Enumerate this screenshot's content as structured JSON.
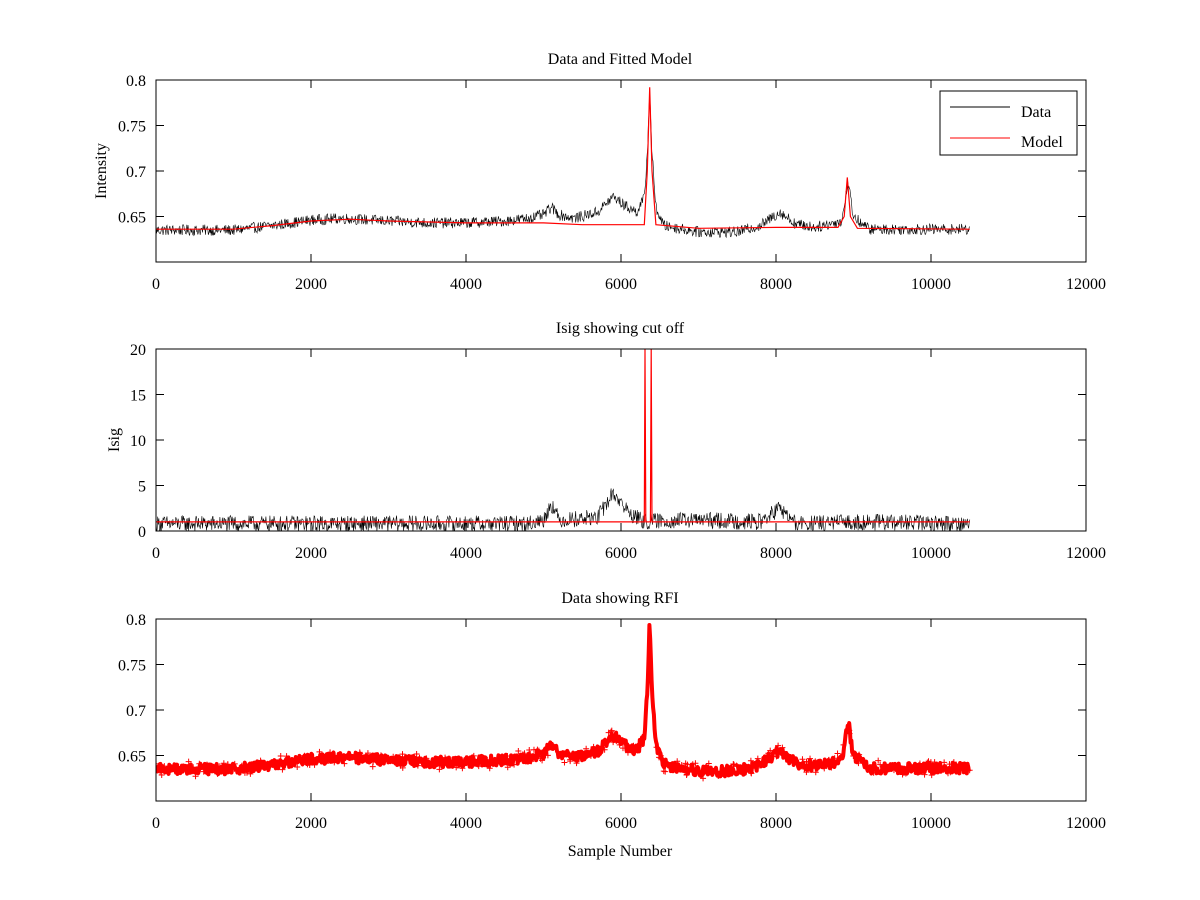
{
  "colors": {
    "data": "#000000",
    "model": "#ff0000",
    "rfi": "#ff0000",
    "axes": "#000000",
    "background": "#ffffff"
  },
  "chart_data": [
    {
      "id": "panel1",
      "type": "line",
      "title": "Data and Fitted Model",
      "xlabel": "",
      "ylabel": "Intensity",
      "xlim": [
        0,
        12000
      ],
      "ylim": [
        0.6,
        0.8
      ],
      "xticks": [
        0,
        2000,
        4000,
        6000,
        8000,
        10000,
        12000
      ],
      "xtick_labels": [
        "0",
        "2000",
        "4000",
        "6000",
        "8000",
        "10000",
        "12000"
      ],
      "yticks": [
        0.65,
        0.7,
        0.75,
        0.8
      ],
      "ytick_labels": [
        "0.65",
        "0.7",
        "0.75",
        "0.8"
      ],
      "grid": false,
      "legend": {
        "placement": "top-right",
        "entries": [
          "Data",
          "Model"
        ]
      },
      "series": [
        {
          "name": "Data",
          "style": "noisy-line",
          "color": "#000000",
          "noise": 0.006,
          "x_range": [
            0,
            10500
          ],
          "points": [
            [
              0,
              0.635
            ],
            [
              1000,
              0.635
            ],
            [
              1500,
              0.64
            ],
            [
              2000,
              0.646
            ],
            [
              2400,
              0.648
            ],
            [
              3000,
              0.645
            ],
            [
              3500,
              0.643
            ],
            [
              4000,
              0.643
            ],
            [
              4500,
              0.645
            ],
            [
              4800,
              0.648
            ],
            [
              5000,
              0.652
            ],
            [
              5100,
              0.66
            ],
            [
              5200,
              0.652
            ],
            [
              5400,
              0.648
            ],
            [
              5700,
              0.655
            ],
            [
              5900,
              0.672
            ],
            [
              6050,
              0.662
            ],
            [
              6200,
              0.655
            ],
            [
              6300,
              0.67
            ],
            [
              6340,
              0.72
            ],
            [
              6370,
              0.79
            ],
            [
              6400,
              0.72
            ],
            [
              6450,
              0.66
            ],
            [
              6550,
              0.64
            ],
            [
              7000,
              0.633
            ],
            [
              7500,
              0.633
            ],
            [
              7800,
              0.64
            ],
            [
              8050,
              0.655
            ],
            [
              8250,
              0.642
            ],
            [
              8500,
              0.638
            ],
            [
              8850,
              0.645
            ],
            [
              8930,
              0.688
            ],
            [
              9000,
              0.65
            ],
            [
              9200,
              0.636
            ],
            [
              10000,
              0.636
            ],
            [
              10500,
              0.636
            ]
          ]
        },
        {
          "name": "Model",
          "style": "line",
          "color": "#ff0000",
          "x_range": [
            0,
            10500
          ],
          "points": [
            [
              0,
              0.636
            ],
            [
              1000,
              0.636
            ],
            [
              1500,
              0.64
            ],
            [
              2000,
              0.645
            ],
            [
              2500,
              0.647
            ],
            [
              3000,
              0.645
            ],
            [
              4000,
              0.643
            ],
            [
              5000,
              0.643
            ],
            [
              5500,
              0.641
            ],
            [
              6000,
              0.641
            ],
            [
              6300,
              0.641
            ],
            [
              6340,
              0.7
            ],
            [
              6370,
              0.792
            ],
            [
              6400,
              0.7
            ],
            [
              6450,
              0.641
            ],
            [
              7000,
              0.637
            ],
            [
              8000,
              0.638
            ],
            [
              8800,
              0.638
            ],
            [
              8880,
              0.65
            ],
            [
              8920,
              0.693
            ],
            [
              8960,
              0.65
            ],
            [
              9050,
              0.637
            ],
            [
              10500,
              0.636
            ]
          ]
        }
      ]
    },
    {
      "id": "panel2",
      "type": "line",
      "title": "Isig showing cut off",
      "xlabel": "",
      "ylabel": "Isig",
      "xlim": [
        0,
        12000
      ],
      "ylim": [
        0,
        20
      ],
      "xticks": [
        0,
        2000,
        4000,
        6000,
        8000,
        10000,
        12000
      ],
      "xtick_labels": [
        "0",
        "2000",
        "4000",
        "6000",
        "8000",
        "10000",
        "12000"
      ],
      "yticks": [
        0,
        5,
        10,
        15,
        20
      ],
      "ytick_labels": [
        "0",
        "5",
        "10",
        "15",
        "20"
      ],
      "grid": false,
      "series": [
        {
          "style": "noisy-line",
          "color": "#000000",
          "noise": 0.9,
          "x_range": [
            0,
            10500
          ],
          "points": [
            [
              0,
              0.8
            ],
            [
              4800,
              0.8
            ],
            [
              5000,
              1.2
            ],
            [
              5100,
              3.0
            ],
            [
              5200,
              1.2
            ],
            [
              5700,
              1.5
            ],
            [
              5900,
              4.2
            ],
            [
              6100,
              2.0
            ],
            [
              6300,
              1.0
            ],
            [
              6500,
              1.1
            ],
            [
              7000,
              1.2
            ],
            [
              7800,
              1.0
            ],
            [
              8050,
              2.5
            ],
            [
              8250,
              0.8
            ],
            [
              8500,
              0.8
            ],
            [
              9000,
              1.0
            ],
            [
              10500,
              0.8
            ]
          ]
        },
        {
          "style": "line",
          "color": "#ff0000",
          "x_range": [
            0,
            10500
          ],
          "points": [
            [
              0,
              1.0
            ],
            [
              6300,
              1.0
            ],
            [
              6310,
              20
            ],
            [
              6320,
              1.0
            ],
            [
              6380,
              1.0
            ],
            [
              6390,
              20
            ],
            [
              6400,
              1.0
            ],
            [
              10500,
              1.0
            ]
          ]
        }
      ]
    },
    {
      "id": "panel3",
      "type": "scatter",
      "title": "Data showing RFI",
      "xlabel": "Sample Number",
      "ylabel": "",
      "xlim": [
        0,
        12000
      ],
      "ylim": [
        0.6,
        0.8
      ],
      "xticks": [
        0,
        2000,
        4000,
        6000,
        8000,
        10000,
        12000
      ],
      "xtick_labels": [
        "0",
        "2000",
        "4000",
        "6000",
        "8000",
        "10000",
        "12000"
      ],
      "yticks": [
        0.65,
        0.7,
        0.75,
        0.8
      ],
      "ytick_labels": [
        "0.65",
        "0.7",
        "0.75",
        "0.8"
      ],
      "grid": false,
      "series": [
        {
          "style": "noisy-band",
          "color": "#ff0000",
          "noise": 0.006,
          "x_range": [
            0,
            10500
          ],
          "points": [
            [
              0,
              0.635
            ],
            [
              1000,
              0.635
            ],
            [
              1500,
              0.64
            ],
            [
              2000,
              0.646
            ],
            [
              2400,
              0.648
            ],
            [
              3000,
              0.645
            ],
            [
              3500,
              0.643
            ],
            [
              4000,
              0.643
            ],
            [
              4500,
              0.645
            ],
            [
              4800,
              0.648
            ],
            [
              5000,
              0.652
            ],
            [
              5100,
              0.66
            ],
            [
              5200,
              0.652
            ],
            [
              5400,
              0.648
            ],
            [
              5700,
              0.655
            ],
            [
              5900,
              0.672
            ],
            [
              6050,
              0.662
            ],
            [
              6200,
              0.655
            ],
            [
              6300,
              0.67
            ],
            [
              6340,
              0.72
            ],
            [
              6370,
              0.798
            ],
            [
              6400,
              0.72
            ],
            [
              6450,
              0.66
            ],
            [
              6550,
              0.64
            ],
            [
              7000,
              0.633
            ],
            [
              7500,
              0.633
            ],
            [
              7800,
              0.64
            ],
            [
              8050,
              0.655
            ],
            [
              8250,
              0.642
            ],
            [
              8500,
              0.638
            ],
            [
              8850,
              0.645
            ],
            [
              8930,
              0.688
            ],
            [
              9000,
              0.65
            ],
            [
              9200,
              0.636
            ],
            [
              10000,
              0.636
            ],
            [
              10500,
              0.636
            ]
          ]
        }
      ]
    }
  ]
}
